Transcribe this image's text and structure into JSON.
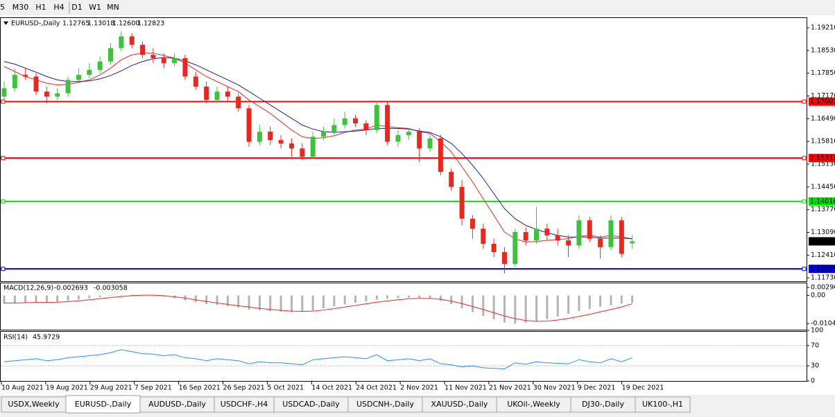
{
  "toolbar": [
    "5",
    "M30",
    "H1",
    "H4",
    "D1",
    "W1",
    "MN"
  ],
  "tabs": [
    "USDX,Weekly",
    "EURUSD-,Daily",
    "AUDUSD-,Daily",
    "USDCHF-,H4",
    "USDCAD-,Daily",
    "USDCNH-,Daily",
    "XAUUSD-,Daily",
    "UKOil-,Weekly",
    "DJ30-,Daily",
    "UK100-,H1"
  ],
  "chart_data": {
    "type": "candlestick",
    "title": "EURUSD-,Daily",
    "header_values": [
      "1.12765",
      "1.13018",
      "1.12600",
      "1.12823"
    ],
    "ylim": [
      1.1163,
      1.195
    ],
    "yticks": [
      {
        "value": 1.1921,
        "label": "1.19210"
      },
      {
        "value": 1.1853,
        "label": "1.18530"
      },
      {
        "value": 1.1785,
        "label": "1.17850"
      },
      {
        "value": 1.1717,
        "label": "1.17170"
      },
      {
        "value": 1.1649,
        "label": "1.16490"
      },
      {
        "value": 1.1581,
        "label": "1.15810"
      },
      {
        "value": 1.1513,
        "label": "1.15130"
      },
      {
        "value": 1.1445,
        "label": "1.14450"
      },
      {
        "value": 1.1377,
        "label": "1.13770"
      },
      {
        "value": 1.1309,
        "label": "1.13090"
      },
      {
        "value": 1.1241,
        "label": "1.12410"
      },
      {
        "value": 1.1173,
        "label": "1.11730"
      }
    ],
    "up_color": "#3cc23c",
    "down_color": "#e8281e",
    "ohlc": [
      [
        1.1715,
        1.176,
        1.1705,
        1.174
      ],
      [
        1.174,
        1.18,
        1.173,
        1.178
      ],
      [
        1.178,
        1.18,
        1.1765,
        1.1775
      ],
      [
        1.1775,
        1.1785,
        1.172,
        1.173
      ],
      [
        1.173,
        1.1745,
        1.1695,
        1.1715
      ],
      [
        1.1715,
        1.174,
        1.1705,
        1.1725
      ],
      [
        1.1725,
        1.1775,
        1.1715,
        1.1765
      ],
      [
        1.1765,
        1.18,
        1.1755,
        1.178
      ],
      [
        1.178,
        1.1815,
        1.177,
        1.1795
      ],
      [
        1.1795,
        1.1835,
        1.1785,
        1.182
      ],
      [
        1.182,
        1.1875,
        1.181,
        1.186
      ],
      [
        1.186,
        1.191,
        1.185,
        1.1895
      ],
      [
        1.1895,
        1.1905,
        1.186,
        1.187
      ],
      [
        1.187,
        1.188,
        1.183,
        1.184
      ],
      [
        1.184,
        1.186,
        1.1815,
        1.183
      ],
      [
        1.183,
        1.1845,
        1.18,
        1.1815
      ],
      [
        1.1815,
        1.1845,
        1.1805,
        1.183
      ],
      [
        1.183,
        1.184,
        1.1765,
        1.1775
      ],
      [
        1.1775,
        1.179,
        1.1735,
        1.1745
      ],
      [
        1.1745,
        1.176,
        1.1695,
        1.1705
      ],
      [
        1.1705,
        1.1745,
        1.1695,
        1.173
      ],
      [
        1.173,
        1.1745,
        1.17,
        1.1715
      ],
      [
        1.1715,
        1.1725,
        1.167,
        1.168
      ],
      [
        1.168,
        1.169,
        1.1565,
        1.158
      ],
      [
        1.158,
        1.163,
        1.157,
        1.161
      ],
      [
        1.161,
        1.1625,
        1.157,
        1.1585
      ],
      [
        1.1585,
        1.16,
        1.156,
        1.1575
      ],
      [
        1.1575,
        1.159,
        1.1535,
        1.156
      ],
      [
        1.156,
        1.1575,
        1.1525,
        1.1535
      ],
      [
        1.1535,
        1.161,
        1.153,
        1.1595
      ],
      [
        1.1595,
        1.1625,
        1.1585,
        1.161
      ],
      [
        1.161,
        1.165,
        1.16,
        1.163
      ],
      [
        1.163,
        1.167,
        1.162,
        1.165
      ],
      [
        1.165,
        1.166,
        1.1625,
        1.1635
      ],
      [
        1.1635,
        1.1645,
        1.16,
        1.1615
      ],
      [
        1.1615,
        1.17,
        1.1605,
        1.169
      ],
      [
        1.169,
        1.17,
        1.157,
        1.158
      ],
      [
        1.158,
        1.1615,
        1.1565,
        1.16
      ],
      [
        1.16,
        1.162,
        1.1585,
        1.161
      ],
      [
        1.161,
        1.162,
        1.152,
        1.156
      ],
      [
        1.156,
        1.16,
        1.155,
        1.159
      ],
      [
        1.159,
        1.16,
        1.148,
        1.149
      ],
      [
        1.149,
        1.15,
        1.1435,
        1.1445
      ],
      [
        1.1445,
        1.1465,
        1.133,
        1.135
      ],
      [
        1.135,
        1.136,
        1.129,
        1.132
      ],
      [
        1.132,
        1.1335,
        1.126,
        1.1275
      ],
      [
        1.1275,
        1.129,
        1.1235,
        1.125
      ],
      [
        1.125,
        1.1265,
        1.1186,
        1.1215
      ],
      [
        1.1215,
        1.132,
        1.1205,
        1.131
      ],
      [
        1.131,
        1.1325,
        1.127,
        1.1285
      ],
      [
        1.1285,
        1.1385,
        1.1275,
        1.132
      ],
      [
        1.132,
        1.1335,
        1.1285,
        1.13
      ],
      [
        1.13,
        1.132,
        1.127,
        1.1285
      ],
      [
        1.1285,
        1.13,
        1.1235,
        1.127
      ],
      [
        1.127,
        1.136,
        1.126,
        1.1345
      ],
      [
        1.1345,
        1.1355,
        1.128,
        1.129
      ],
      [
        1.129,
        1.13,
        1.123,
        1.1265
      ],
      [
        1.1265,
        1.136,
        1.1255,
        1.1345
      ],
      [
        1.1345,
        1.1355,
        1.1235,
        1.1245
      ],
      [
        1.12765,
        1.13018,
        1.126,
        1.12823
      ]
    ],
    "moving_averages": [
      {
        "color": "#e8281e",
        "values": [
          1.1805,
          1.179,
          1.1775,
          1.1765,
          1.1755,
          1.175,
          1.1752,
          1.1758,
          1.1765,
          1.178,
          1.18,
          1.1825,
          1.184,
          1.1845,
          1.1845,
          1.1838,
          1.183,
          1.1815,
          1.1795,
          1.1775,
          1.176,
          1.1745,
          1.173,
          1.1705,
          1.1685,
          1.1665,
          1.164,
          1.1615,
          1.1595,
          1.159,
          1.1592,
          1.1598,
          1.1608,
          1.1615,
          1.1618,
          1.163,
          1.1625,
          1.1622,
          1.162,
          1.161,
          1.1605,
          1.158,
          1.155,
          1.1505,
          1.146,
          1.141,
          1.136,
          1.131,
          1.129,
          1.128,
          1.1282,
          1.1285,
          1.1288,
          1.129,
          1.1298,
          1.13,
          1.1295,
          1.13,
          1.1295,
          1.129
        ]
      },
      {
        "color": "#1a1aa0",
        "values": [
          1.182,
          1.1812,
          1.18,
          1.1788,
          1.1775,
          1.1765,
          1.176,
          1.176,
          1.1762,
          1.1768,
          1.1778,
          1.1792,
          1.1808,
          1.182,
          1.1828,
          1.1832,
          1.183,
          1.1822,
          1.181,
          1.1795,
          1.178,
          1.1765,
          1.175,
          1.173,
          1.171,
          1.169,
          1.167,
          1.165,
          1.163,
          1.1618,
          1.161,
          1.1608,
          1.161,
          1.1612,
          1.1615,
          1.162,
          1.162,
          1.162,
          1.1618,
          1.1612,
          1.1608,
          1.1595,
          1.1575,
          1.1545,
          1.151,
          1.147,
          1.1425,
          1.138,
          1.135,
          1.133,
          1.1318,
          1.1308,
          1.13,
          1.1295,
          1.1295,
          1.1295,
          1.1292,
          1.1292,
          1.1292,
          1.129
        ]
      }
    ],
    "levels": [
      {
        "value": 1.17001,
        "color": "#ff0000"
      },
      {
        "value": 1.15313,
        "color": "#ff0000"
      },
      {
        "value": 1.14016,
        "color": "#00e000"
      },
      {
        "value": 1.11999,
        "color": "#0000e0"
      }
    ],
    "price_tag": 1.12823,
    "date_labels": [
      "10 Aug 2021",
      "19 Aug 2021",
      "29 Aug 2021",
      "7 Sep 2021",
      "16 Sep 2021",
      "26 Sep 2021",
      "5 Oct 2021",
      "14 Oct 2021",
      "24 Oct 2021",
      "2 Nov 2021",
      "11 Nov 2021",
      "21 Nov 2021",
      "30 Nov 2021",
      "9 Dec 2021",
      "19 Dec 2021"
    ],
    "macd": {
      "title": "MACD(12,26,9)",
      "main": -0.002693,
      "signal": -0.003058,
      "ylim": [
        -0.0127,
        0.0045
      ],
      "yticks": [
        0.002966,
        {
          "value": 0,
          "label": "0.00"
        },
        -0.01042
      ],
      "hist_color": "#b4b4b4",
      "signal_color": "#e8281e",
      "histogram": [
        -0.003,
        -0.0028,
        -0.0026,
        -0.0025,
        -0.0026,
        -0.0024,
        -0.002,
        -0.0015,
        -0.001,
        -0.0006,
        -0.0002,
        0.0002,
        0.0003,
        0.0002,
        0.0,
        -0.0005,
        -0.001,
        -0.0018,
        -0.0025,
        -0.0032,
        -0.0036,
        -0.004,
        -0.0045,
        -0.0052,
        -0.0055,
        -0.0058,
        -0.006,
        -0.0062,
        -0.006,
        -0.0055,
        -0.0048,
        -0.004,
        -0.0033,
        -0.0027,
        -0.0022,
        -0.0015,
        -0.0012,
        -0.001,
        -0.0008,
        -0.0009,
        -0.001,
        -0.002,
        -0.0032,
        -0.0048,
        -0.0062,
        -0.0076,
        -0.0088,
        -0.01,
        -0.0104,
        -0.0102,
        -0.0096,
        -0.0088,
        -0.0078,
        -0.0068,
        -0.0058,
        -0.005,
        -0.0042,
        -0.0036,
        -0.003,
        -0.002693
      ],
      "signal_line": [
        -0.0028,
        -0.0028,
        -0.0027,
        -0.0026,
        -0.0026,
        -0.0025,
        -0.0023,
        -0.002,
        -0.0016,
        -0.0012,
        -0.0008,
        -0.0004,
        -0.0001,
        0.0001,
        0.0001,
        -0.0001,
        -0.0005,
        -0.001,
        -0.0016,
        -0.0022,
        -0.0028,
        -0.0033,
        -0.0038,
        -0.0043,
        -0.0048,
        -0.0052,
        -0.0055,
        -0.0058,
        -0.0059,
        -0.0058,
        -0.0054,
        -0.0049,
        -0.0043,
        -0.0037,
        -0.0031,
        -0.0025,
        -0.002,
        -0.0016,
        -0.0012,
        -0.0011,
        -0.0011,
        -0.0014,
        -0.0021,
        -0.003,
        -0.0041,
        -0.0052,
        -0.0064,
        -0.0076,
        -0.0086,
        -0.0093,
        -0.0096,
        -0.0095,
        -0.0091,
        -0.0085,
        -0.0078,
        -0.007,
        -0.0061,
        -0.0052,
        -0.0043,
        -0.003058
      ]
    },
    "rsi": {
      "title": "RSI(14)",
      "current": 45.9729,
      "ylim": [
        0,
        100
      ],
      "yticks": [
        100,
        70,
        30,
        0
      ],
      "color": "#1e90ff",
      "values": [
        38,
        40,
        42,
        44,
        40,
        42,
        46,
        48,
        50,
        52,
        56,
        62,
        58,
        54,
        53,
        50,
        52,
        46,
        44,
        40,
        44,
        42,
        40,
        34,
        38,
        36,
        36,
        34,
        32,
        42,
        44,
        46,
        48,
        46,
        44,
        52,
        40,
        42,
        44,
        40,
        44,
        34,
        32,
        28,
        30,
        26,
        25,
        24,
        36,
        33,
        38,
        36,
        35,
        34,
        42,
        38,
        36,
        44,
        38,
        45.9729
      ]
    }
  }
}
